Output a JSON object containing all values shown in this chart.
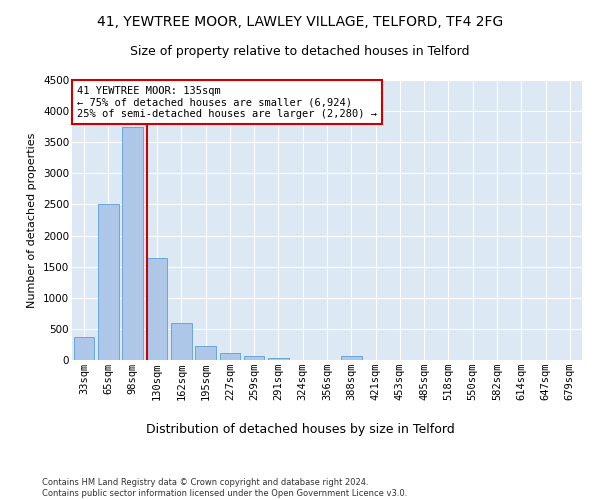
{
  "title1": "41, YEWTREE MOOR, LAWLEY VILLAGE, TELFORD, TF4 2FG",
  "title2": "Size of property relative to detached houses in Telford",
  "xlabel": "Distribution of detached houses by size in Telford",
  "ylabel": "Number of detached properties",
  "footer1": "Contains HM Land Registry data © Crown copyright and database right 2024.",
  "footer2": "Contains public sector information licensed under the Open Government Licence v3.0.",
  "categories": [
    "33sqm",
    "65sqm",
    "98sqm",
    "130sqm",
    "162sqm",
    "195sqm",
    "227sqm",
    "259sqm",
    "291sqm",
    "324sqm",
    "356sqm",
    "388sqm",
    "421sqm",
    "453sqm",
    "485sqm",
    "518sqm",
    "550sqm",
    "582sqm",
    "614sqm",
    "647sqm",
    "679sqm"
  ],
  "values": [
    370,
    2500,
    3750,
    1640,
    590,
    230,
    110,
    65,
    35,
    0,
    0,
    60,
    0,
    0,
    0,
    0,
    0,
    0,
    0,
    0,
    0
  ],
  "bar_color": "#aec6e8",
  "bar_edgecolor": "#5a9fd4",
  "vline_color": "#cc0000",
  "annotation_text": "41 YEWTREE MOOR: 135sqm\n← 75% of detached houses are smaller (6,924)\n25% of semi-detached houses are larger (2,280) →",
  "annotation_box_color": "#cc0000",
  "annotation_bg": "#ffffff",
  "ylim": [
    0,
    4500
  ],
  "yticks": [
    0,
    500,
    1000,
    1500,
    2000,
    2500,
    3000,
    3500,
    4000,
    4500
  ],
  "background_color": "#dce9f5",
  "grid_color": "#ffffff",
  "title1_fontsize": 10,
  "title2_fontsize": 9,
  "xlabel_fontsize": 9,
  "ylabel_fontsize": 8,
  "tick_fontsize": 7.5,
  "footer_fontsize": 6,
  "annotation_fontsize": 7.5
}
